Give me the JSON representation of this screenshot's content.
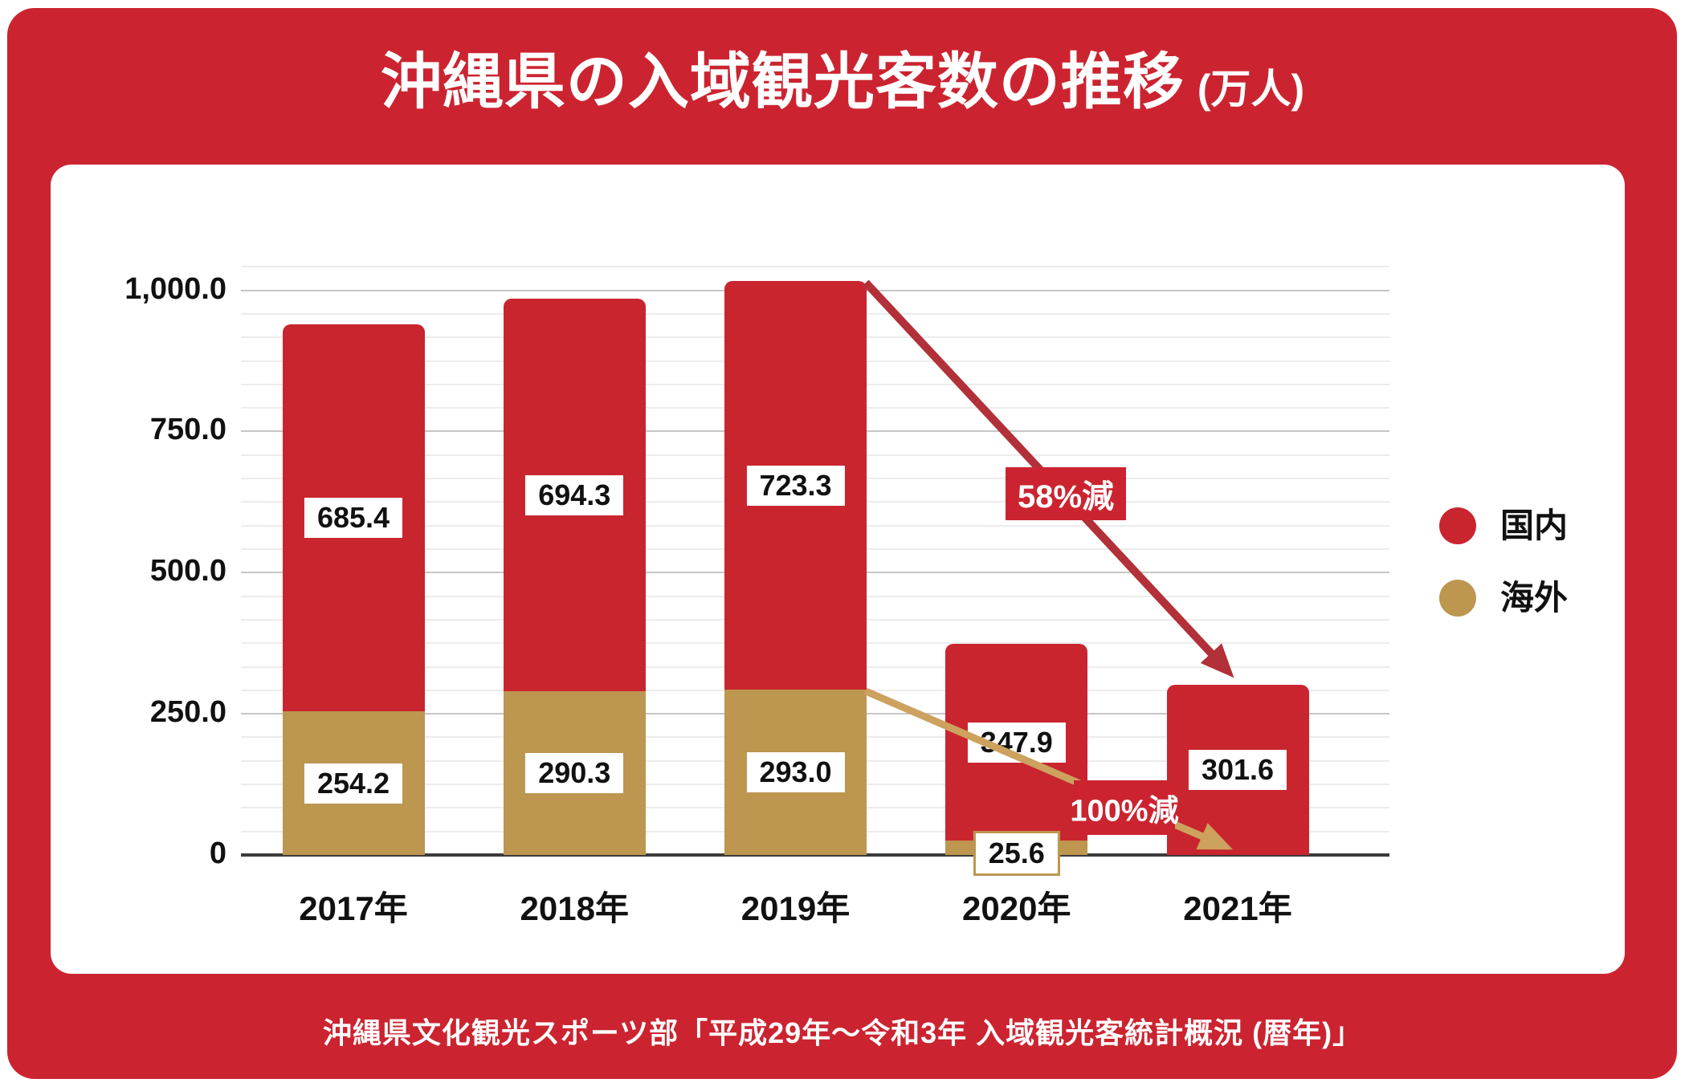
{
  "header": {
    "title": "沖縄県の入域観光客数の推移",
    "unit": "(万人)"
  },
  "chart_data": {
    "type": "bar",
    "stacked": true,
    "title": "沖縄県の入域観光客数の推移",
    "unit": "万人",
    "categories": [
      "2017年",
      "2018年",
      "2019年",
      "2020年",
      "2021年"
    ],
    "series": [
      {
        "name": "海外",
        "color": "#bd9650",
        "values": [
          254.2,
          290.3,
          293.0,
          25.6,
          0
        ]
      },
      {
        "name": "国内",
        "color": "#c9252f",
        "values": [
          685.4,
          694.3,
          723.3,
          347.9,
          301.6
        ]
      }
    ],
    "totals": [
      939.6,
      984.6,
      1016.3,
      373.5,
      301.6
    ],
    "ylim": [
      0,
      1045
    ],
    "y_ticks": [
      {
        "value": 0,
        "label": "0"
      },
      {
        "value": 250,
        "label": "250.0"
      },
      {
        "value": 500,
        "label": "500.0"
      },
      {
        "value": 750,
        "label": "750.0"
      },
      {
        "value": 1000,
        "label": "1,000.0"
      }
    ],
    "grid": "horizontal minor lines every ~41.7, darker major lines every 250",
    "legend_position": "right"
  },
  "annotations": {
    "drop_domestic": {
      "text": "58%減"
    },
    "drop_overseas": {
      "text": "100%減"
    }
  },
  "legend": {
    "items": [
      {
        "label": "国内",
        "color": "#c9252f"
      },
      {
        "label": "海外",
        "color": "#bd9650"
      }
    ]
  },
  "footer": {
    "source": "沖縄県文化観光スポーツ部「平成29年～令和3年 入域観光客統計概況 (暦年)」"
  },
  "colors": {
    "frame_red": "#cb2430",
    "bar_red": "#c9252f",
    "bar_gold": "#bd9650",
    "arrow_red": "#b23038",
    "arrow_gold": "#cda15e",
    "axis": "#3b3b3b"
  }
}
